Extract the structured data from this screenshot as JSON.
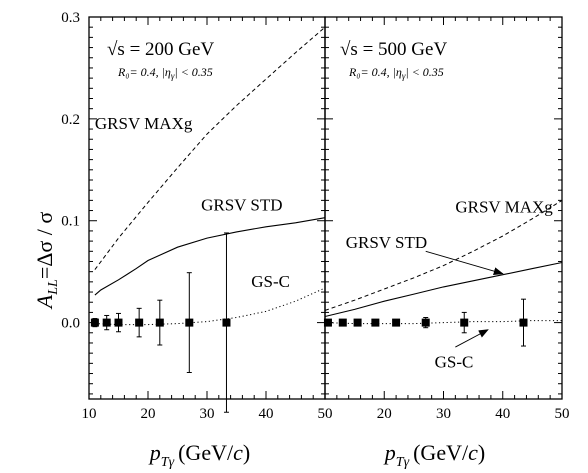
{
  "chart_data": [
    {
      "type": "line",
      "panel": "left",
      "energy_label": "√s = 200 GeV",
      "cuts_label": "R₀= 0.4, |η",
      "cuts_sub": "γ",
      "cuts_tail": "| < 0.35",
      "xlim": [
        10,
        50
      ],
      "ylim": [
        -0.075,
        0.3
      ],
      "x_ticks": [
        10,
        20,
        30,
        40,
        50
      ],
      "x_tick_labels": [
        "10",
        "20",
        "30",
        "40",
        "50"
      ],
      "y_ticks": [
        0.0,
        0.1,
        0.2,
        0.3
      ],
      "y_tick_labels": [
        "0.0",
        "0.1",
        "0.2",
        "0.3"
      ],
      "series": [
        {
          "name": "GRSV MAXg",
          "style": "dashed",
          "x": [
            11,
            15,
            20,
            25,
            30,
            35,
            40,
            45,
            50
          ],
          "y": [
            0.052,
            0.083,
            0.118,
            0.152,
            0.185,
            0.213,
            0.239,
            0.265,
            0.29
          ]
        },
        {
          "name": "GRSV STD",
          "style": "solid",
          "x": [
            11,
            12,
            15,
            18,
            20,
            25,
            30,
            35,
            40,
            45,
            50
          ],
          "y": [
            0.027,
            0.032,
            0.042,
            0.053,
            0.061,
            0.074,
            0.083,
            0.089,
            0.094,
            0.098,
            0.103
          ]
        },
        {
          "name": "GS-C",
          "style": "dotted",
          "x": [
            11,
            15,
            20,
            25,
            30,
            35,
            40,
            45,
            50
          ],
          "y": [
            -0.001,
            -0.002,
            -0.002,
            -0.001,
            0.001,
            0.005,
            0.011,
            0.021,
            0.034
          ]
        }
      ],
      "points": {
        "x": [
          11.0,
          13.0,
          15.0,
          18.5,
          22.0,
          27.0,
          33.3
        ],
        "y": [
          0.0,
          0.0,
          0.0,
          0.0,
          0.0,
          0.0,
          0.0
        ],
        "err": [
          0.004,
          0.007,
          0.009,
          0.014,
          0.022,
          0.049,
          0.088
        ]
      },
      "annotations": [
        {
          "text": "GRSV MAXg",
          "x": 11.0,
          "y": 0.19
        },
        {
          "text": "GRSV STD",
          "x": 29.0,
          "y": 0.11
        },
        {
          "text": "GS-C",
          "x": 37.5,
          "y": 0.035
        }
      ]
    },
    {
      "type": "line",
      "panel": "right",
      "energy_label": "√s = 500 GeV",
      "cuts_label": "R₀= 0.4, |η",
      "cuts_sub": "γ",
      "cuts_tail": "| < 0.35",
      "xlim": [
        10,
        50
      ],
      "ylim": [
        -0.075,
        0.3
      ],
      "x_ticks": [
        10,
        20,
        30,
        40,
        50
      ],
      "x_tick_labels": [
        "",
        "20",
        "30",
        "40",
        "50"
      ],
      "y_ticks": [
        0.0,
        0.1,
        0.2,
        0.3
      ],
      "series": [
        {
          "name": "GRSV MAXg",
          "style": "dashed",
          "x": [
            10,
            15,
            20,
            25,
            30,
            35,
            40,
            45,
            50
          ],
          "y": [
            0.012,
            0.022,
            0.033,
            0.044,
            0.056,
            0.07,
            0.085,
            0.102,
            0.12
          ]
        },
        {
          "name": "GRSV STD",
          "style": "solid",
          "x": [
            10,
            15,
            20,
            25,
            30,
            35,
            40,
            45,
            50
          ],
          "y": [
            0.006,
            0.013,
            0.021,
            0.028,
            0.035,
            0.041,
            0.047,
            0.053,
            0.059
          ]
        },
        {
          "name": "GS-C",
          "style": "dotted",
          "x": [
            10,
            15,
            20,
            25,
            30,
            35,
            40,
            45,
            50
          ],
          "y": [
            0.0,
            -0.001,
            -0.001,
            -0.001,
            0.0,
            0.001,
            0.001,
            0.002,
            0.002
          ]
        }
      ],
      "points": {
        "x": [
          10.5,
          13.0,
          15.5,
          18.5,
          22.0,
          27.0,
          33.5,
          43.5
        ],
        "y": [
          0.0,
          0.0,
          0.0,
          0.0,
          0.0,
          0.0,
          0.0,
          0.0
        ],
        "err": [
          0.001,
          0.001,
          0.002,
          0.002,
          0.003,
          0.005,
          0.01,
          0.023
        ]
      },
      "annotations": [
        {
          "text": "GRSV MAXg",
          "x": 32.0,
          "y": 0.108,
          "arrow": false
        },
        {
          "text": "GRSV STD",
          "x": 13.5,
          "y": 0.073,
          "arrow_from": [
            27.0,
            0.07
          ],
          "arrow_to": [
            40.0,
            0.048
          ]
        },
        {
          "text": "GS-C",
          "x": 28.5,
          "y": -0.044,
          "arrow_from": [
            32.0,
            -0.024
          ],
          "arrow_to": [
            37.5,
            -0.007
          ]
        }
      ]
    }
  ],
  "axes": {
    "ylabel_main": "A",
    "ylabel_sub": "LL",
    "ylabel_rest": "=Δσ / σ",
    "xlabel_main": "p",
    "xlabel_sub": "Tγ",
    "xlabel_rest": "(GeV/",
    "xlabel_c": "c",
    "xlabel_close": ")"
  }
}
